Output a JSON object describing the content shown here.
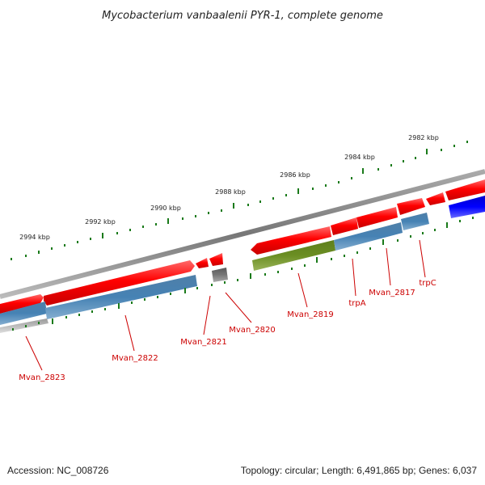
{
  "title": "Mycobacterium vanbaalenii PYR-1, complete genome",
  "ticks": [
    "2982 kbp",
    "2984 kbp",
    "2986 kbp",
    "2988 kbp",
    "2990 kbp",
    "2992 kbp",
    "2994 kbp"
  ],
  "genes": [
    "trpC",
    "Mvan_2817",
    "trpA",
    "Mvan_2819",
    "Mvan_2820",
    "Mvan_2821",
    "Mvan_2822",
    "Mvan_2823"
  ],
  "footer": {
    "accession": "Accession: NC_008726",
    "summary": "Topology: circular; Length: 6,491,865 bp; Genes: 6,037"
  },
  "colors": {
    "forward": "#ff0000",
    "reverse": "#4682b4",
    "rna": "#6b8e23",
    "pseudo": "#777777",
    "highlight": "#0000ff",
    "tick": "#1a7a1a",
    "backbone": "#888888"
  }
}
